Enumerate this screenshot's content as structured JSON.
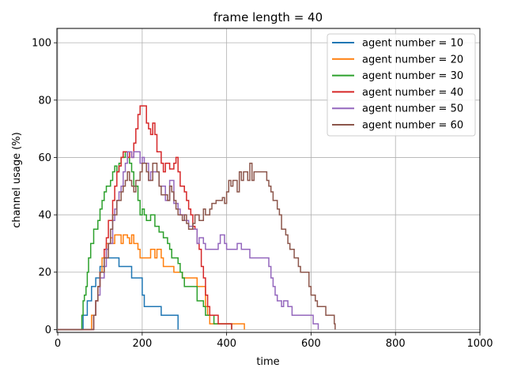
{
  "chart_data": {
    "type": "line",
    "title": "frame length = 40",
    "xlabel": "time",
    "ylabel": "channel usage (%)",
    "xlim": [
      -2,
      1000
    ],
    "ylim": [
      -1,
      105
    ],
    "xticks": [
      0,
      200,
      400,
      600,
      800,
      1000
    ],
    "yticks": [
      0,
      20,
      40,
      60,
      80,
      100
    ],
    "grid": true,
    "legend_position": "top-right",
    "series": [
      {
        "name": "agent number = 10",
        "color": "#1f77b4",
        "points": [
          [
            0,
            0
          ],
          [
            55,
            0
          ],
          [
            60,
            5
          ],
          [
            70,
            10
          ],
          [
            80,
            15
          ],
          [
            90,
            18
          ],
          [
            100,
            22
          ],
          [
            110,
            25
          ],
          [
            140,
            25
          ],
          [
            145,
            22
          ],
          [
            170,
            22
          ],
          [
            175,
            18
          ],
          [
            195,
            18
          ],
          [
            200,
            12
          ],
          [
            205,
            8
          ],
          [
            240,
            8
          ],
          [
            245,
            5
          ],
          [
            280,
            5
          ],
          [
            285,
            0
          ]
        ]
      },
      {
        "name": "agent number = 20",
        "color": "#ff7f0e",
        "points": [
          [
            0,
            0
          ],
          [
            75,
            0
          ],
          [
            80,
            5
          ],
          [
            90,
            10
          ],
          [
            95,
            15
          ],
          [
            100,
            20
          ],
          [
            105,
            25
          ],
          [
            115,
            30
          ],
          [
            125,
            32
          ],
          [
            130,
            30
          ],
          [
            135,
            33
          ],
          [
            150,
            30
          ],
          [
            155,
            33
          ],
          [
            165,
            32
          ],
          [
            170,
            30
          ],
          [
            175,
            33
          ],
          [
            180,
            30
          ],
          [
            190,
            28
          ],
          [
            195,
            25
          ],
          [
            215,
            25
          ],
          [
            220,
            28
          ],
          [
            230,
            25
          ],
          [
            235,
            28
          ],
          [
            245,
            25
          ],
          [
            250,
            22
          ],
          [
            270,
            22
          ],
          [
            275,
            20
          ],
          [
            290,
            20
          ],
          [
            295,
            18
          ],
          [
            325,
            18
          ],
          [
            330,
            15
          ],
          [
            345,
            15
          ],
          [
            350,
            8
          ],
          [
            355,
            5
          ],
          [
            360,
            2
          ],
          [
            410,
            2
          ],
          [
            440,
            2
          ],
          [
            442,
            0
          ]
        ]
      },
      {
        "name": "agent number = 30",
        "color": "#2ca02c",
        "points": [
          [
            0,
            0
          ],
          [
            55,
            0
          ],
          [
            57,
            5
          ],
          [
            60,
            10
          ],
          [
            63,
            12
          ],
          [
            67,
            15
          ],
          [
            70,
            20
          ],
          [
            73,
            25
          ],
          [
            78,
            30
          ],
          [
            85,
            35
          ],
          [
            95,
            38
          ],
          [
            100,
            42
          ],
          [
            105,
            45
          ],
          [
            110,
            48
          ],
          [
            115,
            50
          ],
          [
            125,
            52
          ],
          [
            130,
            55
          ],
          [
            135,
            57
          ],
          [
            140,
            55
          ],
          [
            145,
            58
          ],
          [
            150,
            60
          ],
          [
            160,
            62
          ],
          [
            165,
            60
          ],
          [
            170,
            58
          ],
          [
            175,
            55
          ],
          [
            180,
            50
          ],
          [
            190,
            45
          ],
          [
            195,
            40
          ],
          [
            200,
            42
          ],
          [
            205,
            40
          ],
          [
            210,
            38
          ],
          [
            220,
            40
          ],
          [
            230,
            36
          ],
          [
            240,
            34
          ],
          [
            250,
            32
          ],
          [
            260,
            30
          ],
          [
            265,
            28
          ],
          [
            270,
            25
          ],
          [
            285,
            23
          ],
          [
            290,
            20
          ],
          [
            295,
            18
          ],
          [
            300,
            15
          ],
          [
            325,
            15
          ],
          [
            330,
            10
          ],
          [
            345,
            8
          ],
          [
            350,
            5
          ],
          [
            360,
            5
          ],
          [
            370,
            2
          ],
          [
            410,
            2
          ],
          [
            412,
            0
          ]
        ]
      },
      {
        "name": "agent number = 40",
        "color": "#d62728",
        "points": [
          [
            0,
            0
          ],
          [
            80,
            0
          ],
          [
            85,
            5
          ],
          [
            90,
            10
          ],
          [
            95,
            15
          ],
          [
            100,
            20
          ],
          [
            110,
            28
          ],
          [
            115,
            32
          ],
          [
            120,
            38
          ],
          [
            130,
            45
          ],
          [
            135,
            50
          ],
          [
            140,
            55
          ],
          [
            145,
            57
          ],
          [
            150,
            60
          ],
          [
            155,
            62
          ],
          [
            165,
            60
          ],
          [
            170,
            62
          ],
          [
            175,
            60
          ],
          [
            180,
            65
          ],
          [
            185,
            70
          ],
          [
            190,
            75
          ],
          [
            195,
            78
          ],
          [
            205,
            78
          ],
          [
            210,
            72
          ],
          [
            215,
            70
          ],
          [
            220,
            68
          ],
          [
            225,
            72
          ],
          [
            230,
            68
          ],
          [
            235,
            62
          ],
          [
            245,
            58
          ],
          [
            250,
            55
          ],
          [
            255,
            58
          ],
          [
            265,
            56
          ],
          [
            275,
            58
          ],
          [
            280,
            60
          ],
          [
            285,
            55
          ],
          [
            290,
            50
          ],
          [
            300,
            48
          ],
          [
            305,
            45
          ],
          [
            310,
            42
          ],
          [
            315,
            40
          ],
          [
            320,
            36
          ],
          [
            325,
            35
          ],
          [
            330,
            30
          ],
          [
            335,
            28
          ],
          [
            340,
            22
          ],
          [
            345,
            18
          ],
          [
            350,
            12
          ],
          [
            355,
            8
          ],
          [
            360,
            5
          ],
          [
            375,
            5
          ],
          [
            380,
            2
          ],
          [
            410,
            2
          ],
          [
            412,
            0
          ]
        ]
      },
      {
        "name": "agent number = 50",
        "color": "#9467bd",
        "points": [
          [
            0,
            0
          ],
          [
            80,
            0
          ],
          [
            85,
            5
          ],
          [
            90,
            10
          ],
          [
            95,
            12
          ],
          [
            100,
            18
          ],
          [
            110,
            22
          ],
          [
            115,
            28
          ],
          [
            120,
            30
          ],
          [
            130,
            38
          ],
          [
            135,
            42
          ],
          [
            140,
            45
          ],
          [
            145,
            48
          ],
          [
            150,
            50
          ],
          [
            155,
            55
          ],
          [
            160,
            58
          ],
          [
            165,
            62
          ],
          [
            175,
            60
          ],
          [
            180,
            62
          ],
          [
            190,
            62
          ],
          [
            195,
            58
          ],
          [
            200,
            60
          ],
          [
            205,
            58
          ],
          [
            215,
            52
          ],
          [
            220,
            55
          ],
          [
            235,
            55
          ],
          [
            240,
            50
          ],
          [
            250,
            50
          ],
          [
            255,
            45
          ],
          [
            265,
            52
          ],
          [
            275,
            44
          ],
          [
            285,
            42
          ],
          [
            290,
            40
          ],
          [
            300,
            38
          ],
          [
            310,
            36
          ],
          [
            320,
            35
          ],
          [
            330,
            30
          ],
          [
            335,
            32
          ],
          [
            345,
            30
          ],
          [
            350,
            28
          ],
          [
            375,
            28
          ],
          [
            380,
            30
          ],
          [
            385,
            33
          ],
          [
            395,
            30
          ],
          [
            400,
            28
          ],
          [
            420,
            28
          ],
          [
            425,
            30
          ],
          [
            435,
            28
          ],
          [
            450,
            28
          ],
          [
            455,
            25
          ],
          [
            495,
            25
          ],
          [
            500,
            22
          ],
          [
            505,
            18
          ],
          [
            510,
            15
          ],
          [
            515,
            12
          ],
          [
            520,
            10
          ],
          [
            530,
            8
          ],
          [
            535,
            10
          ],
          [
            545,
            8
          ],
          [
            555,
            5
          ],
          [
            600,
            5
          ],
          [
            605,
            2
          ],
          [
            615,
            2
          ],
          [
            617,
            0
          ]
        ]
      },
      {
        "name": "agent number = 60",
        "color": "#8c564b",
        "points": [
          [
            0,
            0
          ],
          [
            80,
            0
          ],
          [
            85,
            5
          ],
          [
            90,
            10
          ],
          [
            95,
            15
          ],
          [
            100,
            20
          ],
          [
            110,
            25
          ],
          [
            120,
            30
          ],
          [
            125,
            35
          ],
          [
            130,
            40
          ],
          [
            140,
            45
          ],
          [
            150,
            48
          ],
          [
            155,
            50
          ],
          [
            160,
            52
          ],
          [
            165,
            55
          ],
          [
            170,
            52
          ],
          [
            175,
            50
          ],
          [
            180,
            48
          ],
          [
            185,
            52
          ],
          [
            195,
            55
          ],
          [
            200,
            58
          ],
          [
            210,
            55
          ],
          [
            215,
            52
          ],
          [
            225,
            58
          ],
          [
            235,
            55
          ],
          [
            240,
            50
          ],
          [
            245,
            47
          ],
          [
            255,
            47
          ],
          [
            260,
            45
          ],
          [
            265,
            50
          ],
          [
            270,
            48
          ],
          [
            275,
            45
          ],
          [
            280,
            42
          ],
          [
            285,
            40
          ],
          [
            295,
            38
          ],
          [
            300,
            40
          ],
          [
            305,
            37
          ],
          [
            310,
            35
          ],
          [
            320,
            37
          ],
          [
            325,
            40
          ],
          [
            335,
            38
          ],
          [
            345,
            42
          ],
          [
            350,
            40
          ],
          [
            360,
            42
          ],
          [
            365,
            44
          ],
          [
            375,
            45
          ],
          [
            385,
            45
          ],
          [
            390,
            46
          ],
          [
            395,
            44
          ],
          [
            400,
            48
          ],
          [
            405,
            52
          ],
          [
            410,
            50
          ],
          [
            415,
            52
          ],
          [
            425,
            48
          ],
          [
            430,
            55
          ],
          [
            435,
            52
          ],
          [
            440,
            55
          ],
          [
            450,
            52
          ],
          [
            455,
            58
          ],
          [
            460,
            52
          ],
          [
            465,
            55
          ],
          [
            475,
            55
          ],
          [
            490,
            55
          ],
          [
            495,
            52
          ],
          [
            500,
            50
          ],
          [
            505,
            48
          ],
          [
            510,
            45
          ],
          [
            520,
            42
          ],
          [
            525,
            40
          ],
          [
            530,
            35
          ],
          [
            540,
            33
          ],
          [
            545,
            30
          ],
          [
            550,
            28
          ],
          [
            560,
            25
          ],
          [
            570,
            22
          ],
          [
            575,
            20
          ],
          [
            590,
            20
          ],
          [
            595,
            15
          ],
          [
            600,
            12
          ],
          [
            610,
            10
          ],
          [
            615,
            8
          ],
          [
            630,
            8
          ],
          [
            635,
            5
          ],
          [
            650,
            5
          ],
          [
            655,
            2
          ],
          [
            657,
            0
          ]
        ]
      }
    ]
  }
}
